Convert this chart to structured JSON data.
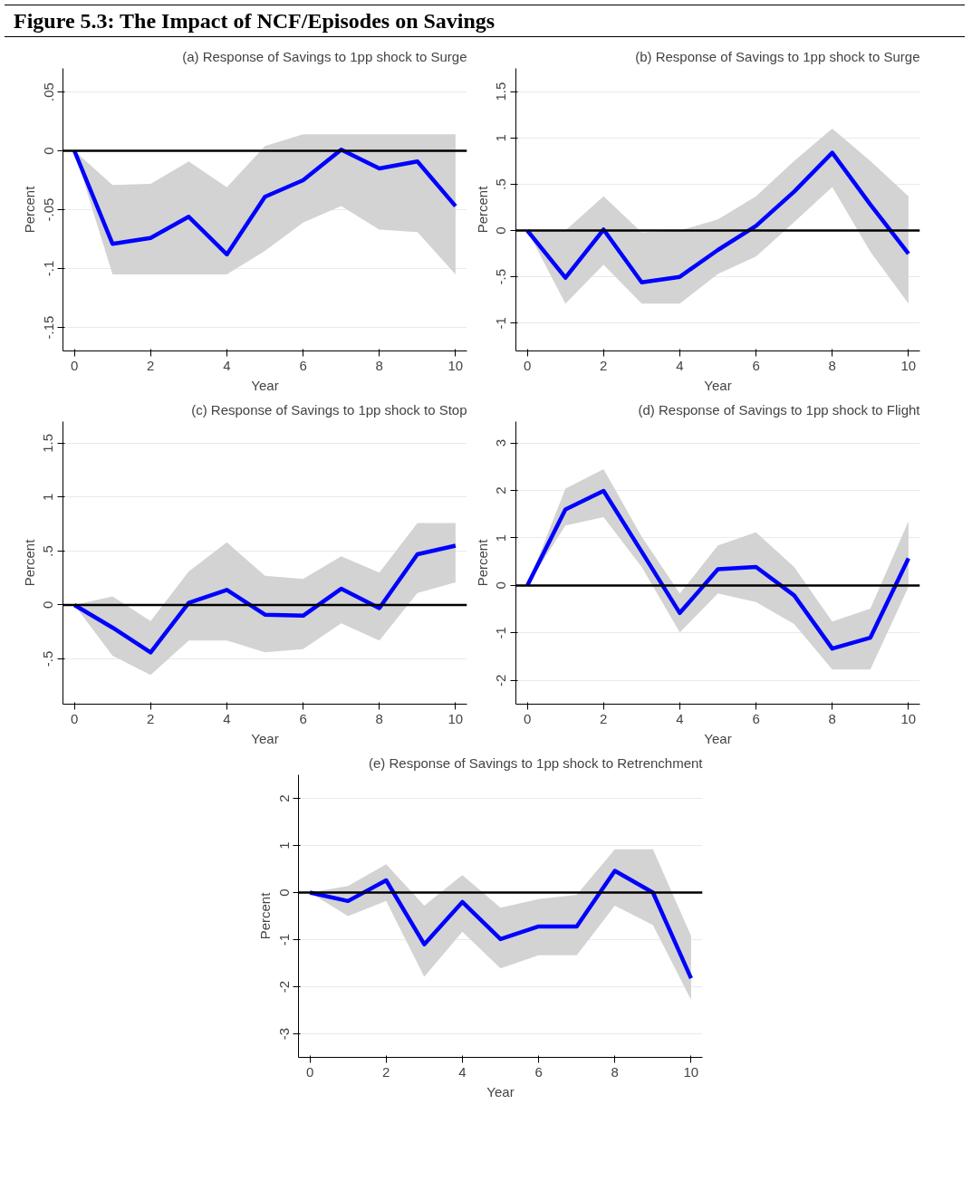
{
  "chart_data": [
    {
      "type": "line",
      "title": "(a) Response of Savings to 1pp shock to Surge",
      "xlabel": "Year",
      "ylabel": "Percent",
      "annotations": [
        "Figure 5.3: The Impact of NCF/Episodes on Savings"
      ],
      "x": [
        0,
        1,
        2,
        3,
        4,
        5,
        6,
        7,
        8,
        9,
        10
      ],
      "xlim": [
        -0.3,
        10.3
      ],
      "xticks": [
        0,
        2,
        4,
        6,
        8,
        10
      ],
      "ylim": [
        -0.17,
        0.07
      ],
      "yticks": [
        {
          "value": -0.15,
          "label": "-.15"
        },
        {
          "value": -0.1,
          "label": "-.1"
        },
        {
          "value": -0.05,
          "label": "-.05"
        },
        0,
        {
          "value": 0.05,
          "label": ".05"
        }
      ],
      "grid": "y",
      "ref_lines": [
        {
          "axis": "y",
          "value": 0,
          "color": "#000000"
        }
      ],
      "series": [
        {
          "color": "#0000ff",
          "values": [
            0,
            -0.079,
            -0.074,
            -0.056,
            -0.088,
            -0.039,
            -0.025,
            0.001,
            -0.015,
            -0.009,
            -0.047
          ],
          "lower": [
            0,
            -0.105,
            -0.105,
            -0.105,
            -0.105,
            -0.085,
            -0.061,
            -0.047,
            -0.067,
            -0.069,
            -0.105
          ],
          "upper": [
            0,
            -0.029,
            -0.028,
            -0.009,
            -0.031,
            0.004,
            0.014,
            0.014,
            0.014,
            0.014,
            0.014
          ]
        }
      ]
    },
    {
      "type": "line",
      "title": "(b) Response of Savings to 1pp shock to Surge",
      "xlabel": "Year",
      "ylabel": "Percent",
      "x": [
        0,
        1,
        2,
        3,
        4,
        5,
        6,
        7,
        8,
        9,
        10
      ],
      "xlim": [
        -0.3,
        10.3
      ],
      "xticks": [
        0,
        2,
        4,
        6,
        8,
        10
      ],
      "ylim": [
        -1.3,
        1.75
      ],
      "yticks": [
        -1,
        {
          "value": -0.5,
          "label": "-.5"
        },
        0,
        {
          "value": 0.5,
          "label": ".5"
        },
        1,
        1.5
      ],
      "grid": "y",
      "ref_lines": [
        {
          "axis": "y",
          "value": 0,
          "color": "#000000"
        }
      ],
      "series": [
        {
          "color": "#0000ff",
          "values": [
            0,
            -0.51,
            0.01,
            -0.56,
            -0.5,
            -0.21,
            0.05,
            0.42,
            0.84,
            0.28,
            -0.25
          ],
          "lower": [
            0,
            -0.79,
            -0.37,
            -0.79,
            -0.79,
            -0.47,
            -0.28,
            0.09,
            0.47,
            -0.23,
            -0.79
          ],
          "upper": [
            0,
            0,
            0.37,
            -0.02,
            0,
            0.12,
            0.37,
            0.75,
            1.1,
            0.75,
            0.37
          ]
        }
      ]
    },
    {
      "type": "line",
      "title": "(c) Response of Savings to 1pp shock to Stop",
      "xlabel": "Year",
      "ylabel": "Percent",
      "x": [
        0,
        1,
        2,
        3,
        4,
        5,
        6,
        7,
        8,
        9,
        10
      ],
      "xlim": [
        -0.3,
        10.3
      ],
      "xticks": [
        0,
        2,
        4,
        6,
        8,
        10
      ],
      "ylim": [
        -0.92,
        1.7
      ],
      "yticks": [
        {
          "value": -0.5,
          "label": "-.5"
        },
        0,
        {
          "value": 0.5,
          "label": ".5"
        },
        1,
        1.5
      ],
      "grid": "y",
      "ref_lines": [
        {
          "axis": "y",
          "value": 0,
          "color": "#000000"
        }
      ],
      "series": [
        {
          "color": "#0000ff",
          "values": [
            0,
            -0.21,
            -0.44,
            0.02,
            0.14,
            -0.09,
            -0.1,
            0.15,
            -0.03,
            0.47,
            0.55
          ],
          "lower": [
            0,
            -0.47,
            -0.65,
            -0.33,
            -0.33,
            -0.44,
            -0.41,
            -0.17,
            -0.33,
            0.11,
            0.21
          ],
          "upper": [
            0,
            0.08,
            -0.15,
            0.31,
            0.58,
            0.27,
            0.24,
            0.45,
            0.3,
            0.76,
            0.76
          ]
        }
      ]
    },
    {
      "type": "line",
      "title": "(d) Response of Savings to 1pp shock to Flight",
      "xlabel": "Year",
      "ylabel": "Percent",
      "x": [
        0,
        1,
        2,
        3,
        4,
        5,
        6,
        7,
        8,
        9,
        10
      ],
      "xlim": [
        -0.3,
        10.3
      ],
      "xticks": [
        0,
        2,
        4,
        6,
        8,
        10
      ],
      "ylim": [
        -2.5,
        3.45
      ],
      "yticks": [
        -2,
        -1,
        0,
        1,
        2,
        3
      ],
      "grid": "y",
      "ref_lines": [
        {
          "axis": "y",
          "value": 0,
          "color": "#000000"
        }
      ],
      "series": [
        {
          "color": "#0000ff",
          "values": [
            0,
            1.6,
            1.99,
            0.71,
            -0.58,
            0.34,
            0.39,
            -0.21,
            -1.33,
            -1.1,
            0.57
          ],
          "lower": [
            0,
            1.26,
            1.44,
            0.39,
            -0.99,
            -0.17,
            -0.35,
            -0.81,
            -1.77,
            -1.77,
            -0.03
          ],
          "upper": [
            0,
            2.04,
            2.45,
            1.03,
            -0.17,
            0.84,
            1.12,
            0.39,
            -0.76,
            -0.49,
            1.35
          ]
        }
      ]
    },
    {
      "type": "line",
      "title": "(e) Response of Savings to 1pp shock to Retrenchment",
      "xlabel": "Year",
      "ylabel": "Percent",
      "x": [
        0,
        1,
        2,
        3,
        4,
        5,
        6,
        7,
        8,
        9,
        10
      ],
      "xlim": [
        -0.3,
        10.3
      ],
      "xticks": [
        0,
        2,
        4,
        6,
        8,
        10
      ],
      "ylim": [
        -3.5,
        2.5
      ],
      "yticks": [
        -3,
        -2,
        -1,
        0,
        1,
        2
      ],
      "grid": "y",
      "ref_lines": [
        {
          "axis": "y",
          "value": 0,
          "color": "#000000"
        }
      ],
      "series": [
        {
          "color": "#0000ff",
          "values": [
            0,
            -0.18,
            0.26,
            -1.1,
            -0.2,
            -0.99,
            -0.72,
            -0.72,
            0.46,
            0,
            -1.82
          ],
          "lower": [
            0,
            -0.5,
            -0.18,
            -1.79,
            -0.83,
            -1.61,
            -1.33,
            -1.33,
            -0.28,
            -0.69,
            -2.28
          ],
          "upper": [
            0,
            0.14,
            0.6,
            -0.28,
            0.37,
            -0.32,
            -0.14,
            -0.05,
            0.92,
            0.92,
            -0.92
          ]
        }
      ]
    }
  ]
}
